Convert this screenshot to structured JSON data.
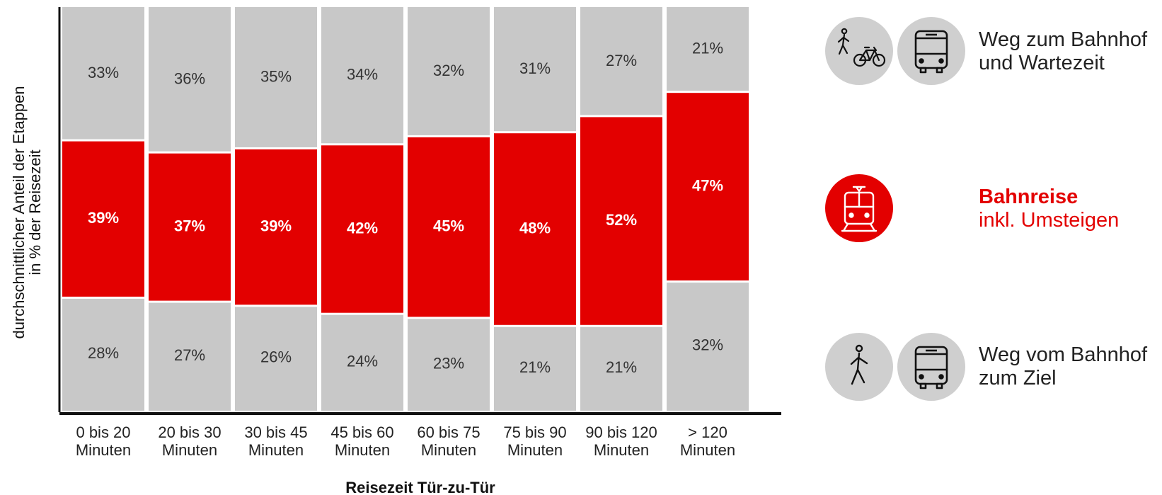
{
  "colors": {
    "gray": "#c8c8c8",
    "red": "#e30000",
    "axis": "#111111",
    "text": "#333333",
    "rail_text": "#ffffff"
  },
  "chart_data": {
    "type": "bar",
    "stacked": true,
    "orientation": "vertical",
    "title": "",
    "xlabel": "Reisezeit Tür-zu-Tür",
    "ylabel": "durchschnittlicher Anteil der Etappen",
    "ylabel_sub": "in % der Reisezeit",
    "ylim": [
      0,
      100
    ],
    "grid": false,
    "categories": [
      [
        "0 bis 20",
        "Minuten"
      ],
      [
        "20 bis 30",
        "Minuten"
      ],
      [
        "30 bis 45",
        "Minuten"
      ],
      [
        "45 bis 60",
        "Minuten"
      ],
      [
        "60 bis 75",
        "Minuten"
      ],
      [
        "75 bis 90",
        "Minuten"
      ],
      [
        "90 bis 120",
        "Minuten"
      ],
      [
        "> 120",
        "Minuten"
      ]
    ],
    "series": [
      {
        "key": "top",
        "name": "Weg zum Bahnhof und Wartezeit",
        "color": "#c8c8c8",
        "values": [
          33,
          36,
          35,
          34,
          32,
          31,
          27,
          21
        ],
        "labels": [
          "33%",
          "36%",
          "35%",
          "34%",
          "32%",
          "31%",
          "27%",
          "21%"
        ]
      },
      {
        "key": "rail",
        "name": "Bahnreise inkl. Umsteigen",
        "color": "#e30000",
        "values": [
          39,
          37,
          39,
          42,
          45,
          48,
          52,
          47
        ],
        "labels": [
          "39%",
          "37%",
          "39%",
          "42%",
          "45%",
          "48%",
          "52%",
          "47%"
        ]
      },
      {
        "key": "bottom",
        "name": "Weg vom Bahnhof zum Ziel",
        "color": "#c8c8c8",
        "values": [
          28,
          27,
          26,
          24,
          23,
          21,
          21,
          32
        ],
        "labels": [
          "28%",
          "27%",
          "26%",
          "24%",
          "23%",
          "21%",
          "21%",
          "32%"
        ]
      }
    ],
    "legend_position": "right"
  },
  "legend": [
    {
      "key": "top",
      "lines": [
        "Weg zum Bahnhof",
        "und Wartezeit"
      ],
      "icons": [
        "walking-cycling-icon",
        "bus-icon"
      ]
    },
    {
      "key": "rail",
      "lines": [
        "Bahnreise",
        "inkl. Umsteigen"
      ],
      "icons": [
        "train-icon"
      ]
    },
    {
      "key": "bottom",
      "lines": [
        "Weg vom Bahnhof",
        "zum Ziel"
      ],
      "icons": [
        "walking-icon",
        "bus-icon"
      ]
    }
  ]
}
